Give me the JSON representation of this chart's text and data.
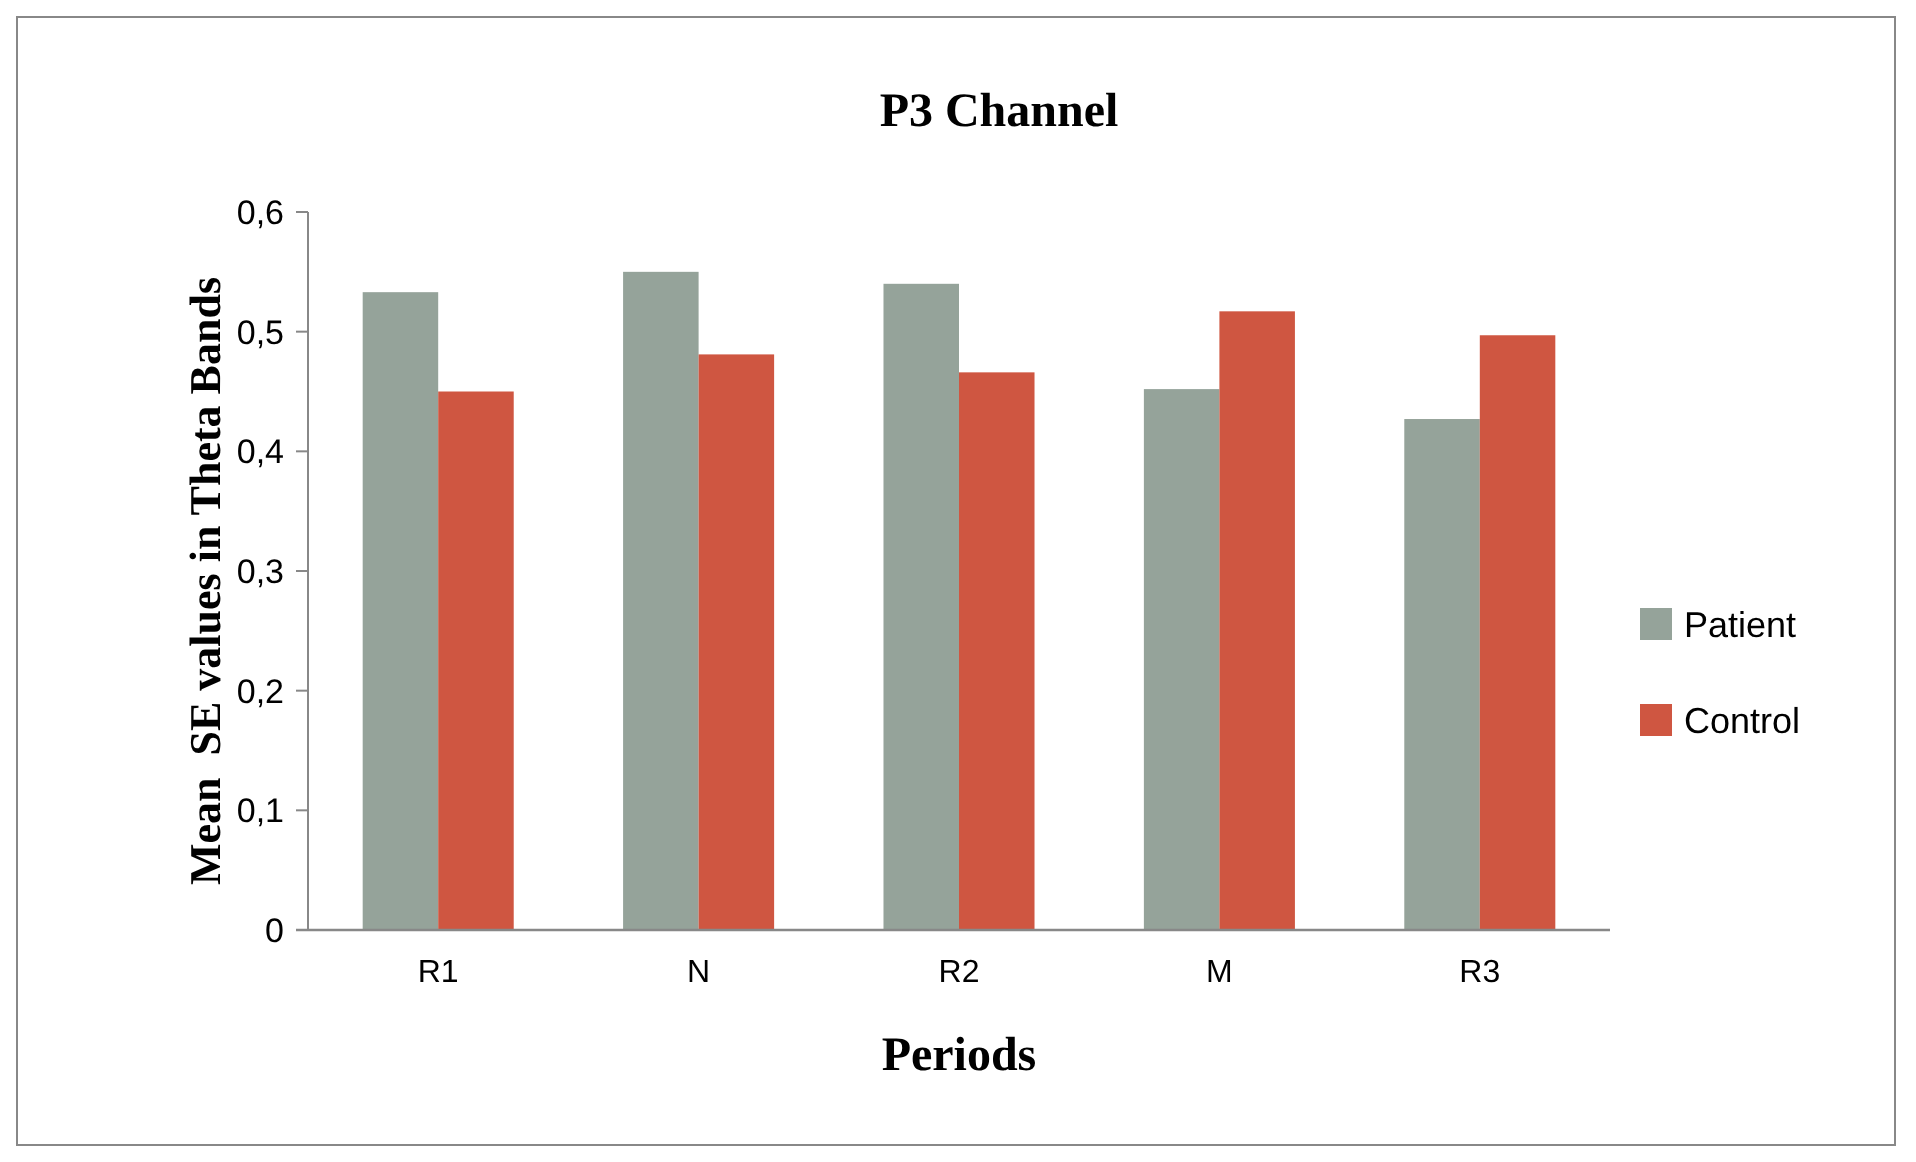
{
  "chart_data": {
    "type": "bar",
    "title": "P3 Channel",
    "xlabel": "Periods",
    "ylabel": "Mean  SE values in Theta Bands",
    "categories": [
      "R1",
      "N",
      "R2",
      "M",
      "R3"
    ],
    "series": [
      {
        "name": "Patient",
        "color": "#95a39a",
        "values": [
          0.533,
          0.55,
          0.54,
          0.452,
          0.427
        ]
      },
      {
        "name": "Control",
        "color": "#cf5641",
        "values": [
          0.45,
          0.481,
          0.466,
          0.517,
          0.497
        ]
      }
    ],
    "ylim": [
      0,
      0.6
    ],
    "yticks": [
      0,
      {
        "value": 0.1,
        "label": "0,1"
      },
      {
        "value": 0.2,
        "label": "0,2"
      },
      {
        "value": 0.3,
        "label": "0,3"
      },
      {
        "value": 0.4,
        "label": "0,4"
      },
      {
        "value": 0.5,
        "label": "0,5"
      },
      {
        "value": 0.6,
        "label": "0,6"
      }
    ],
    "grid": false,
    "legend": "right"
  }
}
